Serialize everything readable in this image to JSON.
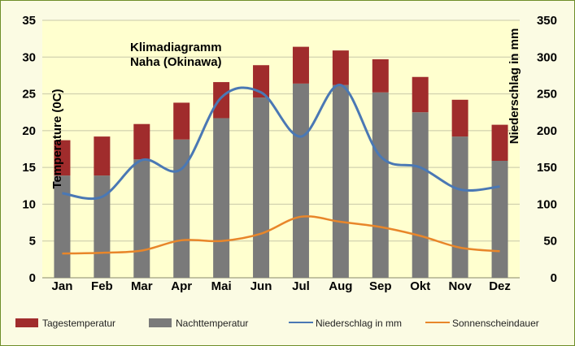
{
  "chart_data": {
    "type": "bar",
    "title": "Klimadiagramm",
    "subtitle": "Naha (Okinawa)",
    "categories": [
      "Jan",
      "Feb",
      "Mar",
      "Apr",
      "Mai",
      "Jun",
      "Jul",
      "Aug",
      "Sep",
      "Okt",
      "Nov",
      "Dez"
    ],
    "ylabel": "Temperature (0C)",
    "ylabel_secondary": "Niederschlag in mm",
    "ylim": [
      0,
      35
    ],
    "ylim_secondary": [
      0,
      350
    ],
    "yticks": [
      "0",
      "5",
      "10",
      "15",
      "20",
      "25",
      "30",
      "35"
    ],
    "yticks_secondary": [
      "0",
      "50",
      "100",
      "150",
      "200",
      "250",
      "300",
      "350"
    ],
    "grid": true,
    "legend_position": "bottom",
    "series": [
      {
        "name": "Tagestemperatur",
        "kind": "stacked-bar-top",
        "color": "#a02c2c",
        "values": [
          18.7,
          19.2,
          20.9,
          23.8,
          26.6,
          28.9,
          31.4,
          30.9,
          29.7,
          27.3,
          24.2,
          20.8
        ]
      },
      {
        "name": "Nachttemperatur",
        "kind": "stacked-bar-base",
        "color": "#7a7a7a",
        "values": [
          13.9,
          13.9,
          16.1,
          18.8,
          21.7,
          24.5,
          26.4,
          26.2,
          25.2,
          22.5,
          19.2,
          15.9
        ]
      },
      {
        "name": "Niederschlag in mm",
        "kind": "line",
        "axis": "secondary",
        "color": "#4a78b4",
        "values": [
          115,
          110,
          160,
          148,
          245,
          252,
          192,
          262,
          165,
          150,
          120,
          124
        ]
      },
      {
        "name": "Sonnenscheindauer",
        "kind": "line",
        "axis": "primary",
        "color": "#e8862a",
        "values": [
          3.3,
          3.4,
          3.7,
          5.1,
          5.0,
          6.0,
          8.3,
          7.6,
          6.9,
          5.7,
          4.1,
          3.6
        ]
      }
    ]
  }
}
